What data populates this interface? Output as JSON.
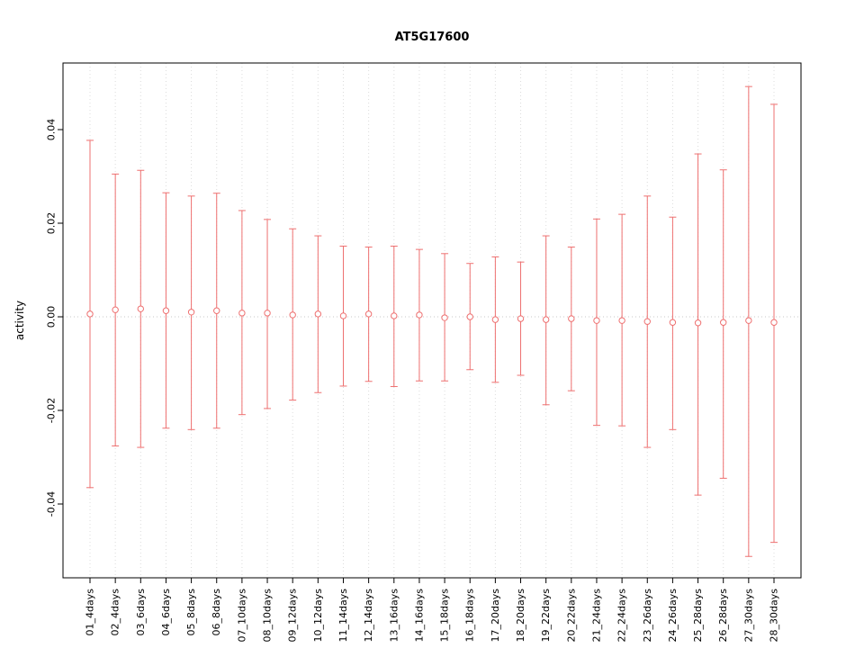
{
  "title": "AT5G17600",
  "chart_data": {
    "type": "scatter",
    "subtype": "errorbar",
    "title": "AT5G17600",
    "xlabel": "",
    "ylabel": "activity",
    "ylim": [
      -0.055,
      0.054
    ],
    "yticks": [
      -0.04,
      -0.02,
      0.0,
      0.02,
      0.04
    ],
    "grid": "dotted-vertical-gridlines-and-dotted-zero-line",
    "legend_position": "none",
    "categories": [
      "01_4days",
      "02_4days",
      "03_6days",
      "04_6days",
      "05_8days",
      "06_8days",
      "07_10days",
      "08_10days",
      "09_12days",
      "10_12days",
      "11_14days",
      "12_14days",
      "13_16days",
      "14_16days",
      "15_18days",
      "16_18days",
      "17_20days",
      "18_20days",
      "19_22days",
      "20_22days",
      "21_24days",
      "22_24days",
      "23_26days",
      "24_26days",
      "25_28days",
      "26_28days",
      "27_30days",
      "28_30days"
    ],
    "series": [
      {
        "name": "mean",
        "values": [
          0.0006,
          0.0015,
          0.0017,
          0.0013,
          0.001,
          0.0013,
          0.0008,
          0.0008,
          0.0004,
          0.0006,
          0.0002,
          0.0006,
          0.0002,
          0.0004,
          -0.0002,
          0.0,
          -0.0006,
          -0.0004,
          -0.0006,
          -0.0004,
          -0.0008,
          -0.0008,
          -0.001,
          -0.0012,
          -0.0013,
          -0.0012,
          -0.0008,
          -0.0012
        ]
      },
      {
        "name": "upper_ci",
        "values": [
          0.0377,
          0.0305,
          0.0313,
          0.0265,
          0.0258,
          0.0264,
          0.0227,
          0.0208,
          0.0188,
          0.0173,
          0.0151,
          0.0149,
          0.0151,
          0.0144,
          0.0135,
          0.0114,
          0.0128,
          0.0117,
          0.0173,
          0.0149,
          0.0209,
          0.0219,
          0.0258,
          0.0213,
          0.0348,
          0.0314,
          0.0492,
          0.0454
        ]
      },
      {
        "name": "lower_ci",
        "values": [
          -0.0365,
          -0.0276,
          -0.0279,
          -0.0238,
          -0.0241,
          -0.0238,
          -0.0209,
          -0.0196,
          -0.0178,
          -0.0162,
          -0.0148,
          -0.0138,
          -0.0149,
          -0.0137,
          -0.0137,
          -0.0113,
          -0.014,
          -0.0125,
          -0.0188,
          -0.0158,
          -0.0232,
          -0.0233,
          -0.0279,
          -0.0241,
          -0.0381,
          -0.0345,
          -0.0512,
          -0.0482
        ]
      }
    ],
    "colors": {
      "errorbar": "#ee7070",
      "grid": "#dcdcdc",
      "zero_line": "#c8c8c8",
      "axis": "#000000",
      "background": "#ffffff"
    }
  }
}
